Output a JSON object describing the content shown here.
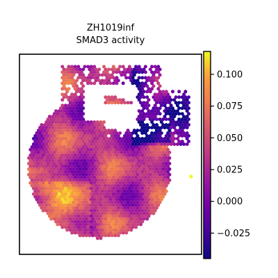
{
  "chart_data": {
    "type": "heatmap",
    "title_line1": "ZH1019inf",
    "title_line2": "SMAD3 activity",
    "xlabel": "",
    "ylabel": "",
    "colormap": "plasma",
    "colorbar": {
      "range": [
        -0.045,
        0.118
      ],
      "ticks": [
        -0.025,
        0.0,
        0.025,
        0.05,
        0.075,
        0.1
      ],
      "tick_labels": [
        "−0.025",
        "0.000",
        "0.025",
        "0.050",
        "0.075",
        "0.100"
      ]
    },
    "grid": false,
    "legend": "colorbar-right"
  }
}
